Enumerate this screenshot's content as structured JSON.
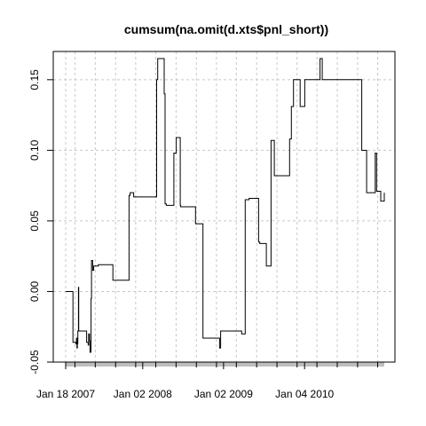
{
  "chart_data": {
    "type": "line",
    "title": "cumsum(na.omit(d.xts$pnl_short))",
    "xlabel": "",
    "ylabel": "",
    "x_range": [
      "2007-01-18",
      "2010-12-31"
    ],
    "ylim": [
      -0.05,
      0.17
    ],
    "y_ticks": [
      -0.05,
      0.0,
      0.05,
      0.1,
      0.15
    ],
    "y_tick_labels": [
      "-0.05",
      "0.00",
      "0.05",
      "0.10",
      "0.15"
    ],
    "x_ticks": [
      "2007-01-18",
      "2008-01-02",
      "2009-01-02",
      "2010-01-04"
    ],
    "x_tick_labels": [
      "Jan 18 2007",
      "Jan 02 2008",
      "Jan 02 2009",
      "Jan 04 2010"
    ],
    "grid": true,
    "colors": {
      "line": "#000000",
      "grid": "#c8c8c8",
      "axis": "#000000",
      "date_band": "#bebebe"
    },
    "series": [
      {
        "x": [
          "2007-01-18",
          "2007-02-14",
          "2007-02-20",
          "2007-03-05",
          "2007-03-08",
          "2007-03-10",
          "2007-03-12",
          "2007-03-14",
          "2007-03-17",
          "2007-03-18",
          "2007-04-20",
          "2007-04-23",
          "2007-04-30",
          "2007-05-02",
          "2007-05-06",
          "2007-05-08",
          "2007-05-13",
          "2007-05-15",
          "2007-05-20",
          "2007-05-25",
          "2007-06-15",
          "2007-06-25",
          "2007-07-15",
          "2007-08-20",
          "2007-09-05",
          "2007-10-01",
          "2007-11-01",
          "2007-11-06",
          "2007-11-22",
          "2008-02-18",
          "2008-02-28",
          "2008-03-01",
          "2008-03-05",
          "2008-03-10",
          "2008-04-08",
          "2008-04-12",
          "2008-04-18",
          "2008-04-20",
          "2008-05-22",
          "2008-06-02",
          "2008-06-20",
          "2008-06-22",
          "2008-07-18",
          "2008-08-28",
          "2008-08-30",
          "2008-09-02",
          "2008-09-10",
          "2008-10-01",
          "2008-10-15",
          "2008-12-10",
          "2008-12-15",
          "2008-12-20",
          "2009-01-15",
          "2009-01-25",
          "2009-03-25",
          "2009-04-10",
          "2009-04-20",
          "2009-04-28",
          "2009-05-05",
          "2009-06-10",
          "2009-06-15",
          "2009-07-10",
          "2009-07-15",
          "2009-08-05",
          "2009-08-20",
          "2009-08-30",
          "2009-09-10",
          "2009-10-20",
          "2009-10-28",
          "2009-11-05",
          "2009-11-15",
          "2009-12-15",
          "2009-12-20",
          "2010-01-05",
          "2010-03-15",
          "2010-03-25",
          "2010-04-10",
          "2010-05-01",
          "2010-05-15",
          "2010-06-08",
          "2010-09-20",
          "2010-10-12",
          "2010-10-15",
          "2010-10-20",
          "2010-11-15",
          "2010-11-20",
          "2010-11-26",
          "2010-12-15",
          "2010-12-31"
        ],
        "y": [
          0.0,
          0.0,
          -0.036,
          -0.037,
          -0.033,
          -0.04,
          -0.037,
          -0.028,
          0.003,
          -0.028,
          -0.028,
          -0.036,
          -0.038,
          -0.03,
          -0.035,
          -0.043,
          -0.005,
          0.022,
          0.015,
          0.018,
          0.019,
          0.019,
          0.019,
          0.008,
          0.008,
          0.008,
          0.068,
          0.07,
          0.067,
          0.067,
          0.067,
          0.067,
          0.15,
          0.165,
          0.14,
          0.062,
          0.061,
          0.061,
          0.098,
          0.109,
          0.061,
          0.06,
          0.06,
          0.048,
          0.048,
          0.048,
          0.048,
          -0.033,
          -0.033,
          -0.033,
          -0.04,
          -0.028,
          -0.028,
          -0.028,
          -0.03,
          0.065,
          0.065,
          0.066,
          0.066,
          0.035,
          0.034,
          0.034,
          0.018,
          0.107,
          0.082,
          0.082,
          0.082,
          0.082,
          0.108,
          0.131,
          0.15,
          0.131,
          0.131,
          0.15,
          0.165,
          0.15,
          0.15,
          0.15,
          0.15,
          0.15,
          0.1,
          0.07,
          0.07,
          0.07,
          0.07,
          0.098,
          0.071,
          0.064,
          0.07
        ]
      }
    ]
  }
}
